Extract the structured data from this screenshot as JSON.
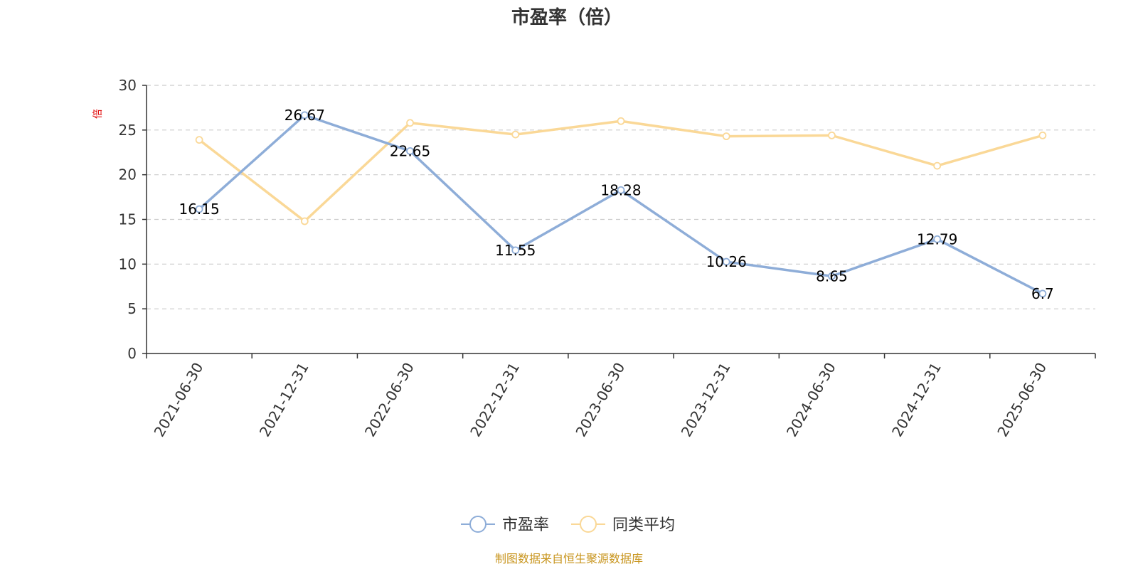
{
  "chart_data": {
    "type": "line",
    "title": "市盈率（倍）",
    "ylabel": "倍",
    "xlabel": "",
    "categories": [
      "2021-06-30",
      "2021-12-31",
      "2022-06-30",
      "2022-12-31",
      "2023-06-30",
      "2023-12-31",
      "2024-06-30",
      "2024-12-31",
      "2025-06-30"
    ],
    "ylim": [
      0,
      30
    ],
    "yticks": [
      0,
      5,
      10,
      15,
      20,
      25,
      30
    ],
    "grid": true,
    "legend_position": "bottom",
    "series": [
      {
        "name": "市盈率",
        "color": "#8eadd8",
        "values": [
          16.15,
          26.67,
          22.65,
          11.55,
          18.28,
          10.26,
          8.65,
          12.79,
          6.7
        ],
        "labels": [
          "16.15",
          "26.67",
          "22.65",
          "11.55",
          "18.28",
          "10.26",
          "8.65",
          "12.79",
          "6.7"
        ]
      },
      {
        "name": "同类平均",
        "color": "#fad897",
        "values": [
          23.9,
          14.8,
          25.8,
          24.5,
          26.0,
          24.3,
          24.4,
          21.0,
          24.4
        ]
      }
    ],
    "source": "制图数据来自恒生聚源数据库"
  }
}
